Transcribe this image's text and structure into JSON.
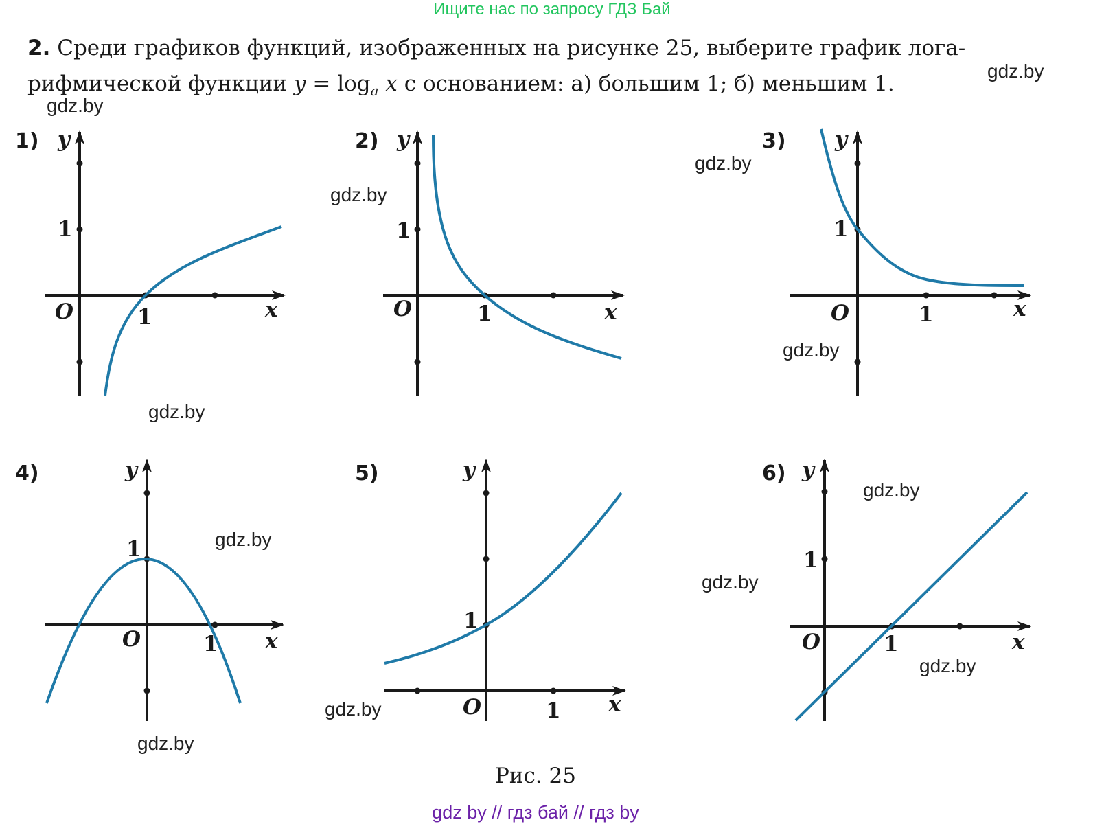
{
  "banner": "Ищите нас по запросу ГДЗ Бай",
  "problem": {
    "number": "2.",
    "line1": "Среди графиков функций, изображенных на рисунке 25, выберите график лога-",
    "line2_prefix": "рифмической функции",
    "formula_y": "y",
    "formula_eq": "=",
    "formula_log": "log",
    "formula_base": "a",
    "formula_x": "x",
    "line2_suffix": "с основанием: а) большим 1;  б) меньшим 1."
  },
  "watermark": "gdz.by",
  "axis_labels": {
    "x": "x",
    "y": "y",
    "origin": "O",
    "one": "1"
  },
  "colors": {
    "curve": "#1f7aa8",
    "axis": "#1a1a1a",
    "banner": "#22c55e",
    "footer": "#6b21a8"
  },
  "graphs": [
    {
      "label": "1)",
      "function": "log",
      "description": "y = log_a x, a > 1"
    },
    {
      "label": "2)",
      "function": "log",
      "description": "y = log_a x, 0 < a < 1"
    },
    {
      "label": "3)",
      "function": "decay",
      "description": "decreasing exponential-like curve through (0,1)"
    },
    {
      "label": "4)",
      "function": "parabola",
      "description": "y = 1 - x^2"
    },
    {
      "label": "5)",
      "function": "exp",
      "description": "increasing exponential-like curve through (0,1)"
    },
    {
      "label": "6)",
      "function": "linear",
      "description": "y = x - 1"
    }
  ],
  "caption": "Рис. 25",
  "footer": "gdz by  //  гдз бай  //  гдз by"
}
